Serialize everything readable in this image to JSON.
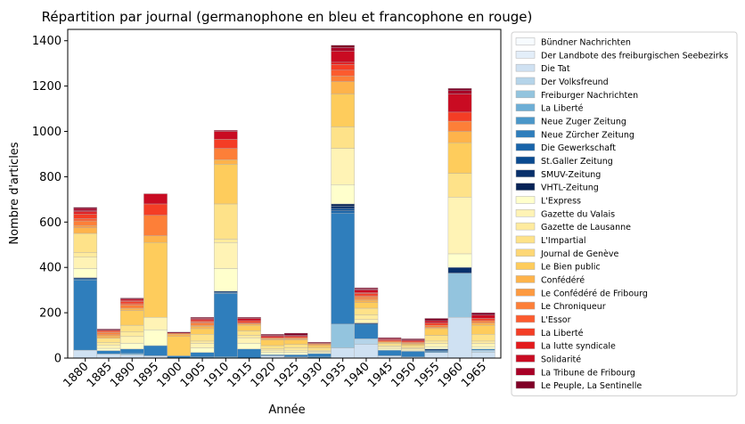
{
  "chart_data": {
    "type": "bar",
    "stacked": true,
    "title": "Répartition par journal (germanophone en bleu et francophone en rouge)",
    "xlabel": "Année",
    "ylabel": "Nombre d'articles",
    "ylim": [
      0,
      1450
    ],
    "yticks": [
      0,
      200,
      400,
      600,
      800,
      1000,
      1200,
      1400
    ],
    "categories": [
      "1880",
      "1885",
      "1890",
      "1895",
      "1900",
      "1905",
      "1910",
      "1915",
      "1920",
      "1925",
      "1930",
      "1935",
      "1940",
      "1945",
      "1950",
      "1955",
      "1960",
      "1965"
    ],
    "legend_position": "outside-right",
    "series": [
      {
        "name": "Bündner Nachrichten",
        "color": "#f7fbff",
        "values": [
          0,
          0,
          0,
          0,
          0,
          0,
          0,
          0,
          0,
          0,
          0,
          0,
          0,
          0,
          0,
          0,
          0,
          0
        ]
      },
      {
        "name": "Der Landbote des freiburgischen Seebezirks",
        "color": "#e3eef9",
        "values": [
          0,
          0,
          0,
          0,
          0,
          0,
          0,
          0,
          0,
          0,
          0,
          0,
          0,
          0,
          0,
          0,
          0,
          0
        ]
      },
      {
        "name": "Die Tat",
        "color": "#cfe1f2",
        "values": [
          35,
          18,
          15,
          10,
          0,
          0,
          0,
          0,
          10,
          5,
          0,
          45,
          60,
          10,
          5,
          25,
          180,
          25
        ]
      },
      {
        "name": "Der Volksfreund",
        "color": "#b5d4e9",
        "values": [
          0,
          0,
          0,
          0,
          0,
          0,
          0,
          0,
          0,
          0,
          0,
          0,
          25,
          0,
          0,
          0,
          0,
          10
        ]
      },
      {
        "name": "Freiburger Nachrichten",
        "color": "#93c4de",
        "values": [
          0,
          0,
          0,
          0,
          0,
          0,
          0,
          0,
          0,
          0,
          0,
          105,
          0,
          0,
          0,
          0,
          195,
          0
        ]
      },
      {
        "name": "La Liberté",
        "color": "#6daed5",
        "values": [
          0,
          0,
          5,
          0,
          0,
          0,
          5,
          0,
          0,
          0,
          0,
          0,
          0,
          0,
          0,
          0,
          0,
          0
        ]
      },
      {
        "name": "Neue Zuger Zeitung",
        "color": "#4b97c9",
        "values": [
          0,
          0,
          0,
          0,
          0,
          5,
          0,
          0,
          0,
          0,
          5,
          0,
          0,
          0,
          0,
          0,
          0,
          0
        ]
      },
      {
        "name": "Neue Zürcher Zeitung",
        "color": "#2f7ebc",
        "values": [
          310,
          15,
          20,
          45,
          10,
          20,
          280,
          40,
          5,
          10,
          15,
          490,
          65,
          25,
          25,
          5,
          0,
          5
        ]
      },
      {
        "name": "Die Gewerkschaft",
        "color": "#1864aa",
        "values": [
          5,
          0,
          0,
          0,
          0,
          0,
          5,
          0,
          0,
          0,
          0,
          10,
          0,
          0,
          0,
          5,
          0,
          0
        ]
      },
      {
        "name": "St.Galler Zeitung",
        "color": "#0a4a90",
        "values": [
          0,
          0,
          0,
          0,
          0,
          0,
          0,
          0,
          0,
          0,
          0,
          10,
          0,
          0,
          0,
          0,
          0,
          0
        ]
      },
      {
        "name": "SMUV-Zeitung",
        "color": "#08306b",
        "values": [
          5,
          0,
          0,
          0,
          0,
          0,
          5,
          0,
          0,
          0,
          0,
          10,
          5,
          0,
          0,
          5,
          25,
          0
        ]
      },
      {
        "name": "VHTL-Zeitung",
        "color": "#062356",
        "values": [
          0,
          0,
          0,
          0,
          0,
          0,
          0,
          0,
          0,
          0,
          0,
          10,
          0,
          0,
          0,
          0,
          0,
          0
        ]
      },
      {
        "name": "L'Express",
        "color": "#ffffcc",
        "values": [
          40,
          10,
          25,
          70,
          0,
          20,
          100,
          25,
          10,
          10,
          5,
          85,
          0,
          5,
          5,
          10,
          60,
          10
        ]
      },
      {
        "name": "Gazette du Valais",
        "color": "#fff3b5",
        "values": [
          50,
          15,
          30,
          55,
          0,
          20,
          115,
          25,
          10,
          10,
          5,
          160,
          15,
          10,
          5,
          15,
          250,
          15
        ]
      },
      {
        "name": "Gazette de Lausanne",
        "color": "#ffeb9e",
        "values": [
          20,
          10,
          20,
          0,
          0,
          10,
          15,
          10,
          5,
          10,
          5,
          0,
          20,
          5,
          5,
          10,
          0,
          10
        ]
      },
      {
        "name": "L'Impartial",
        "color": "#fee289",
        "values": [
          85,
          20,
          30,
          0,
          0,
          30,
          155,
          20,
          15,
          15,
          10,
          95,
          30,
          10,
          10,
          25,
          105,
          30
        ]
      },
      {
        "name": "Journal de Genève",
        "color": "#fed775",
        "values": [
          0,
          0,
          0,
          0,
          0,
          0,
          0,
          0,
          0,
          0,
          0,
          0,
          0,
          0,
          0,
          0,
          0,
          0
        ]
      },
      {
        "name": "Le Bien public",
        "color": "#fecc5c",
        "values": [
          0,
          0,
          65,
          330,
          85,
          25,
          175,
          25,
          25,
          20,
          10,
          145,
          25,
          5,
          5,
          30,
          135,
          40
        ]
      },
      {
        "name": "Confédéré",
        "color": "#feb34b",
        "values": [
          25,
          10,
          10,
          30,
          10,
          10,
          20,
          5,
          5,
          5,
          5,
          55,
          10,
          0,
          5,
          5,
          50,
          10
        ]
      },
      {
        "name": "Le Confédéré de Fribourg",
        "color": "#fd9a41",
        "values": [
          10,
          5,
          0,
          0,
          0,
          5,
          0,
          0,
          0,
          0,
          0,
          0,
          5,
          0,
          0,
          0,
          0,
          0
        ]
      },
      {
        "name": "Le Chroniqueur",
        "color": "#fd7f38",
        "values": [
          20,
          10,
          15,
          90,
          5,
          10,
          50,
          5,
          5,
          5,
          5,
          25,
          10,
          5,
          5,
          10,
          45,
          10
        ]
      },
      {
        "name": "L'Essor",
        "color": "#fc5b2e",
        "values": [
          10,
          5,
          5,
          0,
          0,
          5,
          0,
          0,
          0,
          0,
          0,
          25,
          5,
          0,
          0,
          0,
          0,
          0
        ]
      },
      {
        "name": "La Liberté",
        "color": "#f43d25",
        "values": [
          20,
          5,
          10,
          50,
          0,
          5,
          40,
          10,
          0,
          5,
          0,
          25,
          10,
          5,
          5,
          10,
          40,
          10
        ]
      },
      {
        "name": "La lutte syndicale",
        "color": "#e31a1c",
        "values": [
          10,
          0,
          5,
          0,
          0,
          5,
          0,
          0,
          5,
          0,
          0,
          10,
          5,
          0,
          0,
          0,
          0,
          0
        ]
      },
      {
        "name": "Solidarité",
        "color": "#c90b22",
        "values": [
          5,
          0,
          5,
          45,
          0,
          5,
          35,
          10,
          5,
          5,
          0,
          50,
          10,
          5,
          5,
          10,
          80,
          15
        ]
      },
      {
        "name": "La Tribune de Fribourg",
        "color": "#a80026",
        "values": [
          10,
          0,
          0,
          0,
          0,
          0,
          5,
          0,
          0,
          0,
          0,
          15,
          5,
          0,
          0,
          0,
          15,
          0
        ]
      },
      {
        "name": "Le Peuple, La Sentinelle",
        "color": "#800026",
        "values": [
          5,
          5,
          5,
          0,
          5,
          5,
          0,
          5,
          5,
          10,
          5,
          10,
          5,
          5,
          5,
          10,
          10,
          10
        ]
      }
    ]
  }
}
